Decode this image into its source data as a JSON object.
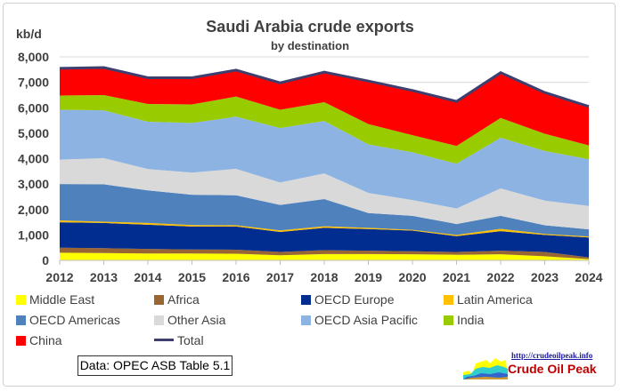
{
  "chart_data": {
    "type": "area",
    "stacked": true,
    "title": "Saudi Arabia crude exports",
    "subtitle": "by destination",
    "ylabel": "kb/d",
    "xlabel": "",
    "ylim": [
      0,
      8000
    ],
    "yticks": [
      "0",
      "1,000",
      "2,000",
      "3,000",
      "4,000",
      "5,000",
      "6,000",
      "7,000",
      "8,000"
    ],
    "ytick_values": [
      0,
      1000,
      2000,
      3000,
      4000,
      5000,
      6000,
      7000,
      8000
    ],
    "categories": [
      "2012",
      "2013",
      "2014",
      "2015",
      "2016",
      "2017",
      "2018",
      "2019",
      "2020",
      "2021",
      "2022",
      "2023",
      "2024"
    ],
    "grid": true,
    "legend_placement": "bottom",
    "series": [
      {
        "name": "Middle East",
        "color": "#ffff00",
        "values": [
          300,
          290,
          270,
          270,
          260,
          200,
          250,
          250,
          240,
          220,
          240,
          160,
          50
        ]
      },
      {
        "name": "Africa",
        "color": "#996633",
        "values": [
          200,
          190,
          180,
          160,
          160,
          130,
          150,
          130,
          120,
          110,
          140,
          170,
          70
        ]
      },
      {
        "name": "OECD Europe",
        "color": "#002d8f",
        "values": [
          1000,
          990,
          950,
          900,
          910,
          790,
          880,
          850,
          810,
          620,
          770,
          670,
          780
        ]
      },
      {
        "name": "Latin America",
        "color": "#ffc000",
        "values": [
          70,
          50,
          70,
          60,
          50,
          60,
          60,
          50,
          30,
          50,
          90,
          40,
          40
        ]
      },
      {
        "name": "OECD Americas",
        "color": "#4f81bd",
        "values": [
          1430,
          1470,
          1280,
          1190,
          1180,
          1000,
          1070,
          580,
          550,
          430,
          510,
          340,
          280
        ]
      },
      {
        "name": "Other Asia",
        "color": "#d9d9d9",
        "values": [
          960,
          1030,
          840,
          870,
          1040,
          880,
          1010,
          790,
          620,
          610,
          1080,
          970,
          920
        ]
      },
      {
        "name": "OECD Asia Pacific",
        "color": "#8db3e2",
        "values": [
          1960,
          1880,
          1860,
          1950,
          2050,
          2140,
          2060,
          1910,
          1880,
          1760,
          1990,
          1950,
          1840
        ]
      },
      {
        "name": "India",
        "color": "#99cc00",
        "values": [
          560,
          600,
          700,
          730,
          790,
          720,
          740,
          800,
          670,
          700,
          780,
          680,
          540
        ]
      },
      {
        "name": "China",
        "color": "#ff0000",
        "values": [
          1070,
          1080,
          1030,
          1050,
          1040,
          1060,
          1180,
          1690,
          1760,
          1750,
          1780,
          1620,
          1530
        ]
      }
    ],
    "total": {
      "name": "Total",
      "color": "#3f3f6f"
    }
  },
  "source_note": "Data: OPEC ASB Table 5.1",
  "logo": {
    "url": "http://crudeoilpeak.info",
    "name": "Crude Oil Peak"
  }
}
